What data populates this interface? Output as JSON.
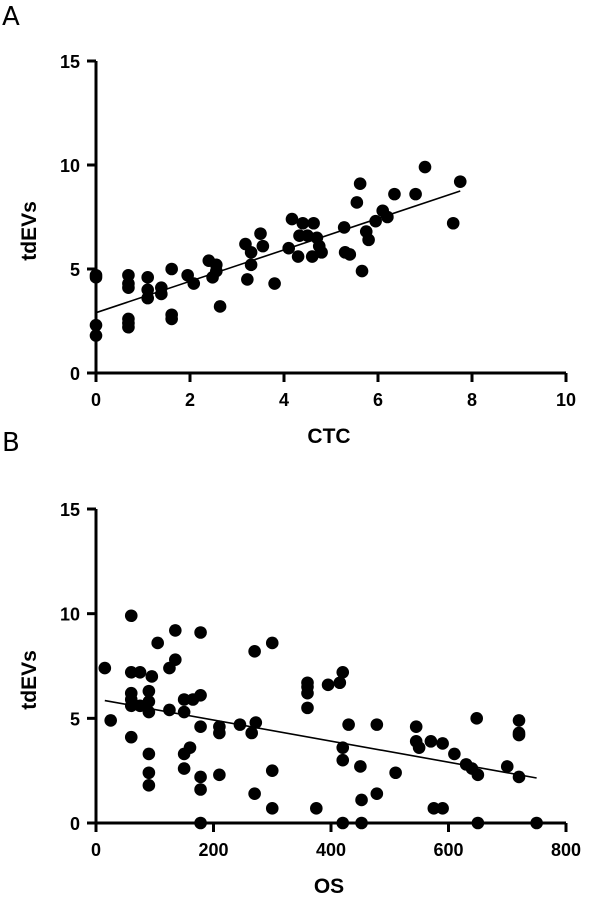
{
  "chart_data": [
    {
      "panel_label": "A",
      "type": "scatter",
      "title": "",
      "xlabel": "CTC",
      "ylabel": "tdEVs",
      "xlim": [
        0,
        10
      ],
      "ylim": [
        0,
        15
      ],
      "xticks": [
        0,
        2,
        4,
        6,
        8,
        10
      ],
      "yticks": [
        0,
        5,
        10,
        15
      ],
      "grid": false,
      "marker_color": "#000000",
      "points": [
        [
          0,
          4.7
        ],
        [
          0,
          4.6
        ],
        [
          0,
          2.3
        ],
        [
          0,
          1.8
        ],
        [
          0.69,
          4.7
        ],
        [
          0.69,
          4.3
        ],
        [
          0.69,
          4.1
        ],
        [
          0.69,
          2.6
        ],
        [
          0.69,
          2.4
        ],
        [
          0.69,
          2.2
        ],
        [
          1.1,
          4.6
        ],
        [
          1.1,
          4.0
        ],
        [
          1.1,
          3.6
        ],
        [
          1.39,
          4.1
        ],
        [
          1.39,
          3.8
        ],
        [
          1.61,
          5.0
        ],
        [
          1.61,
          2.8
        ],
        [
          1.61,
          2.6
        ],
        [
          1.95,
          4.7
        ],
        [
          2.08,
          4.3
        ],
        [
          2.4,
          5.4
        ],
        [
          2.48,
          4.6
        ],
        [
          2.56,
          5.2
        ],
        [
          2.56,
          4.9
        ],
        [
          2.64,
          3.2
        ],
        [
          3.18,
          6.2
        ],
        [
          3.22,
          4.5
        ],
        [
          3.3,
          5.8
        ],
        [
          3.3,
          5.2
        ],
        [
          3.5,
          6.7
        ],
        [
          3.55,
          6.1
        ],
        [
          3.8,
          4.3
        ],
        [
          4.1,
          6.0
        ],
        [
          4.17,
          7.4
        ],
        [
          4.3,
          5.6
        ],
        [
          4.33,
          6.6
        ],
        [
          4.4,
          7.2
        ],
        [
          4.5,
          6.6
        ],
        [
          4.6,
          5.6
        ],
        [
          4.63,
          7.2
        ],
        [
          4.7,
          6.5
        ],
        [
          4.75,
          6.1
        ],
        [
          4.8,
          5.8
        ],
        [
          5.28,
          7.0
        ],
        [
          5.3,
          5.8
        ],
        [
          5.4,
          5.7
        ],
        [
          5.55,
          8.2
        ],
        [
          5.62,
          9.1
        ],
        [
          5.66,
          4.9
        ],
        [
          5.75,
          6.8
        ],
        [
          5.8,
          6.4
        ],
        [
          5.95,
          7.3
        ],
        [
          6.1,
          7.8
        ],
        [
          6.2,
          7.5
        ],
        [
          6.35,
          8.6
        ],
        [
          6.8,
          8.6
        ],
        [
          7.0,
          9.9
        ],
        [
          7.6,
          7.2
        ],
        [
          7.75,
          9.2
        ]
      ],
      "fit_line": {
        "x": [
          0,
          7.75
        ],
        "y": [
          2.9,
          8.75
        ]
      }
    },
    {
      "panel_label": "B",
      "type": "scatter",
      "title": "",
      "xlabel": "OS",
      "ylabel": "tdEVs",
      "xlim": [
        0,
        800
      ],
      "ylim": [
        0,
        15
      ],
      "xticks": [
        0,
        200,
        400,
        600,
        800
      ],
      "yticks": [
        0,
        5,
        10,
        15
      ],
      "grid": false,
      "marker_color": "#000000",
      "points": [
        [
          15,
          7.4
        ],
        [
          25,
          4.9
        ],
        [
          60,
          9.9
        ],
        [
          60,
          7.2
        ],
        [
          60,
          6.2
        ],
        [
          60,
          5.9
        ],
        [
          60,
          5.6
        ],
        [
          60,
          4.1
        ],
        [
          75,
          7.2
        ],
        [
          75,
          5.6
        ],
        [
          90,
          6.3
        ],
        [
          90,
          5.8
        ],
        [
          90,
          5.3
        ],
        [
          90,
          3.3
        ],
        [
          90,
          2.4
        ],
        [
          90,
          1.8
        ],
        [
          95,
          7.0
        ],
        [
          105,
          8.6
        ],
        [
          125,
          7.4
        ],
        [
          125,
          5.4
        ],
        [
          135,
          9.2
        ],
        [
          135,
          7.8
        ],
        [
          150,
          5.9
        ],
        [
          150,
          5.3
        ],
        [
          150,
          3.3
        ],
        [
          150,
          2.6
        ],
        [
          160,
          3.6
        ],
        [
          165,
          5.9
        ],
        [
          178,
          9.1
        ],
        [
          178,
          6.1
        ],
        [
          178,
          4.6
        ],
        [
          178,
          2.2
        ],
        [
          178,
          1.6
        ],
        [
          178,
          0
        ],
        [
          210,
          4.6
        ],
        [
          210,
          4.3
        ],
        [
          210,
          2.3
        ],
        [
          245,
          4.7
        ],
        [
          265,
          4.3
        ],
        [
          270,
          8.2
        ],
        [
          272,
          4.8
        ],
        [
          270,
          1.4
        ],
        [
          300,
          8.6
        ],
        [
          300,
          2.5
        ],
        [
          300,
          0.7
        ],
        [
          360,
          6.7
        ],
        [
          360,
          6.5
        ],
        [
          360,
          6.2
        ],
        [
          360,
          5.5
        ],
        [
          375,
          0.7
        ],
        [
          395,
          6.6
        ],
        [
          415,
          6.7
        ],
        [
          420,
          7.2
        ],
        [
          420,
          3.6
        ],
        [
          420,
          3.0
        ],
        [
          420,
          0
        ],
        [
          430,
          4.7
        ],
        [
          450,
          2.7
        ],
        [
          452,
          1.1
        ],
        [
          452,
          0
        ],
        [
          478,
          4.7
        ],
        [
          478,
          1.4
        ],
        [
          510,
          2.4
        ],
        [
          545,
          4.6
        ],
        [
          545,
          3.9
        ],
        [
          550,
          3.6
        ],
        [
          570,
          3.9
        ],
        [
          575,
          0.7
        ],
        [
          590,
          3.8
        ],
        [
          590,
          0.7
        ],
        [
          610,
          3.3
        ],
        [
          630,
          2.8
        ],
        [
          640,
          2.6
        ],
        [
          648,
          5.0
        ],
        [
          650,
          2.3
        ],
        [
          650,
          0
        ],
        [
          700,
          2.7
        ],
        [
          720,
          4.9
        ],
        [
          720,
          4.3
        ],
        [
          720,
          4.2
        ],
        [
          720,
          2.2
        ],
        [
          750,
          0
        ]
      ],
      "fit_line": {
        "x": [
          15,
          750
        ],
        "y": [
          5.85,
          2.15
        ]
      }
    }
  ]
}
